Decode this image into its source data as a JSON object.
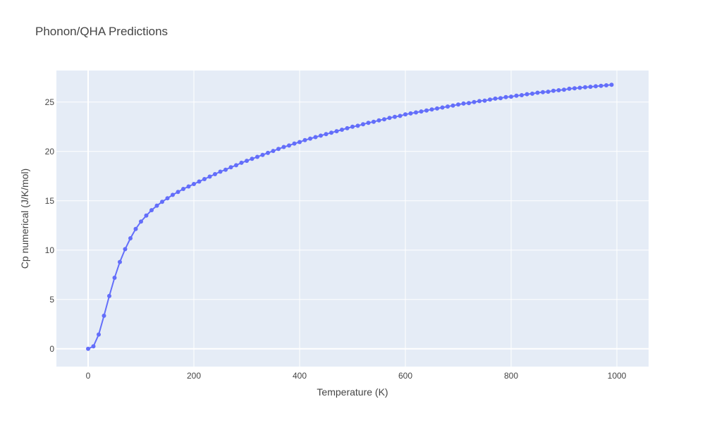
{
  "chart_data": {
    "type": "line",
    "title": "Phonon/QHA Predictions",
    "xlabel": "Temperature (K)",
    "ylabel": "Cp numerical (J/K/mol)",
    "xlim": [
      -60,
      1060
    ],
    "ylim": [
      -1.8,
      28.2
    ],
    "xticks": [
      0,
      200,
      400,
      600,
      800,
      1000
    ],
    "yticks": [
      0,
      5,
      10,
      15,
      20,
      25
    ],
    "grid": true,
    "colors": {
      "plot_bg": "#e5ecf6",
      "grid": "#ffffff",
      "line": "#636efa",
      "text": "#444444"
    },
    "series": [
      {
        "name": "",
        "x": [
          0,
          10,
          20,
          30,
          40,
          50,
          60,
          70,
          80,
          90,
          100,
          110,
          120,
          130,
          140,
          150,
          160,
          170,
          180,
          190,
          200,
          210,
          220,
          230,
          240,
          250,
          260,
          270,
          280,
          290,
          300,
          310,
          320,
          330,
          340,
          350,
          360,
          370,
          380,
          390,
          400,
          410,
          420,
          430,
          440,
          450,
          460,
          470,
          480,
          490,
          500,
          510,
          520,
          530,
          540,
          550,
          560,
          570,
          580,
          590,
          600,
          610,
          620,
          630,
          640,
          650,
          660,
          670,
          680,
          690,
          700,
          710,
          720,
          730,
          740,
          750,
          760,
          770,
          780,
          790,
          800,
          810,
          820,
          830,
          840,
          850,
          860,
          870,
          880,
          890,
          900,
          910,
          920,
          930,
          940,
          950,
          960,
          970,
          980,
          990
        ],
        "y": [
          0.0,
          0.25,
          1.45,
          3.35,
          5.35,
          7.2,
          8.8,
          10.1,
          11.2,
          12.15,
          12.9,
          13.5,
          14.05,
          14.5,
          14.9,
          15.25,
          15.6,
          15.9,
          16.2,
          16.45,
          16.7,
          16.95,
          17.2,
          17.45,
          17.7,
          17.95,
          18.15,
          18.4,
          18.6,
          18.85,
          19.05,
          19.25,
          19.45,
          19.65,
          19.85,
          20.05,
          20.25,
          20.45,
          20.6,
          20.8,
          20.95,
          21.15,
          21.3,
          21.45,
          21.6,
          21.75,
          21.9,
          22.05,
          22.2,
          22.35,
          22.5,
          22.6,
          22.75,
          22.9,
          23.0,
          23.15,
          23.25,
          23.4,
          23.5,
          23.6,
          23.75,
          23.85,
          23.95,
          24.05,
          24.15,
          24.25,
          24.35,
          24.45,
          24.55,
          24.65,
          24.75,
          24.85,
          24.9,
          25.0,
          25.1,
          25.15,
          25.25,
          25.35,
          25.4,
          25.5,
          25.55,
          25.65,
          25.7,
          25.8,
          25.85,
          25.95,
          26.0,
          26.05,
          26.15,
          26.2,
          26.25,
          26.35,
          26.4,
          26.45,
          26.5,
          26.55,
          26.6,
          26.65,
          26.7,
          26.75
        ]
      }
    ]
  }
}
